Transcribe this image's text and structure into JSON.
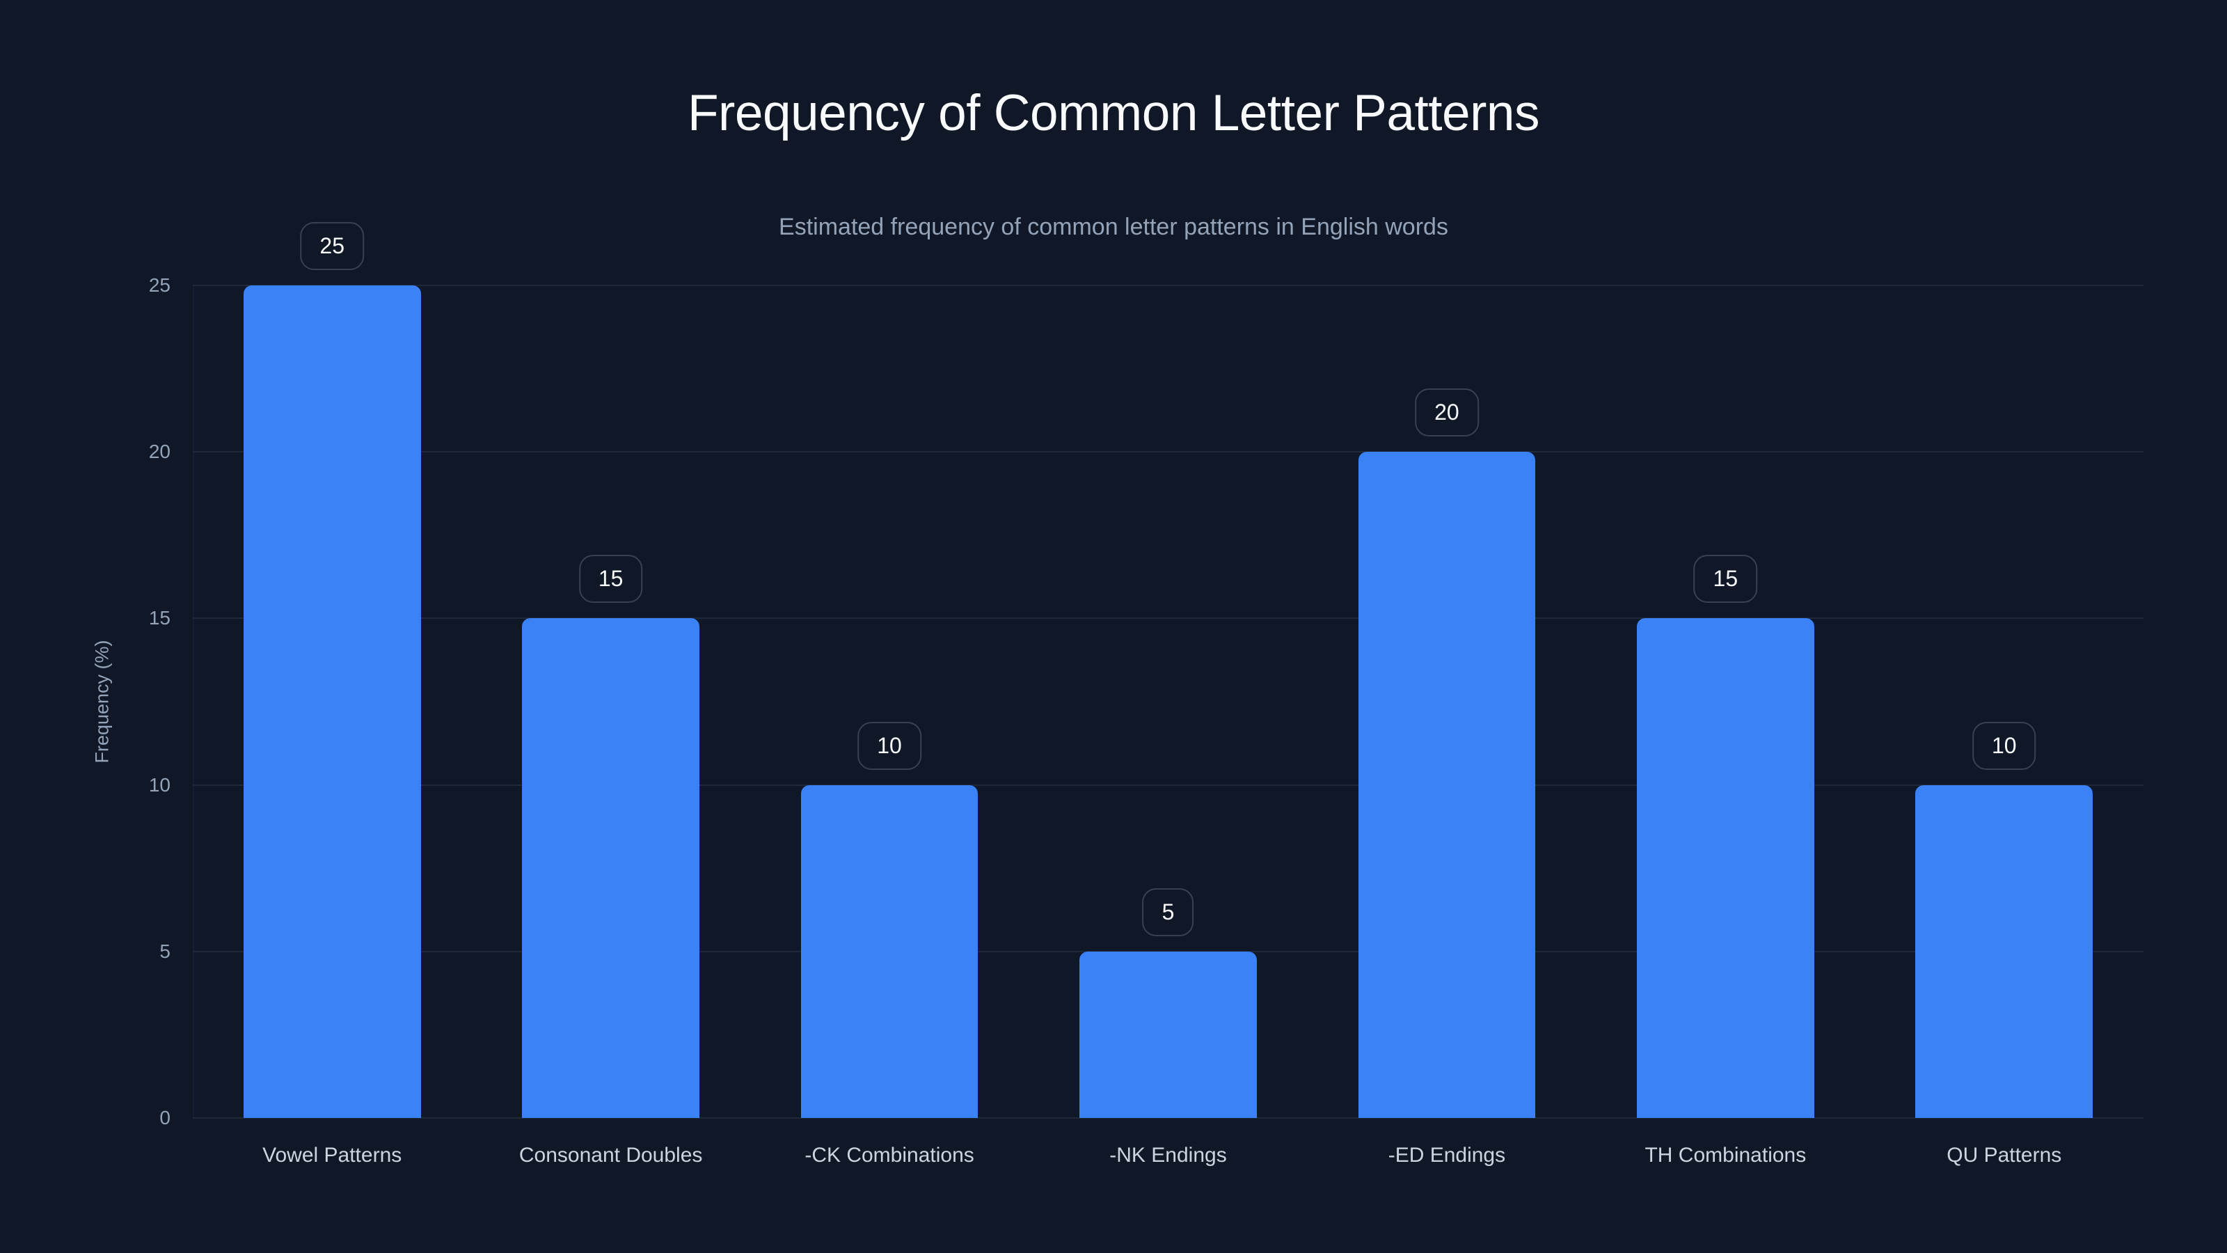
{
  "header": {
    "title": "Frequency of Common Letter Patterns",
    "subtitle": "Estimated frequency of common letter patterns in English words"
  },
  "axes": {
    "y_title": "Frequency (%)",
    "y_ticks": [
      "0",
      "5",
      "10",
      "15",
      "20",
      "25"
    ]
  },
  "colors": {
    "background": "#101828",
    "bar": "#3b82f6",
    "gridline": "#1e293b",
    "label_border": "#374151",
    "title": "#f8fafc",
    "subtitle": "#94a3b8",
    "tick": "#94a3b8",
    "x_label": "#cbd5e1"
  },
  "bars": [
    {
      "label": "Vowel Patterns",
      "value": 25,
      "value_text": "25"
    },
    {
      "label": "Consonant Doubles",
      "value": 15,
      "value_text": "15"
    },
    {
      "label": "-CK Combinations",
      "value": 10,
      "value_text": "10"
    },
    {
      "label": "-NK Endings",
      "value": 5,
      "value_text": "5"
    },
    {
      "label": "-ED Endings",
      "value": 20,
      "value_text": "20"
    },
    {
      "label": "TH Combinations",
      "value": 15,
      "value_text": "15"
    },
    {
      "label": "QU Patterns",
      "value": 10,
      "value_text": "10"
    }
  ],
  "chart_data": {
    "type": "bar",
    "title": "Frequency of Common Letter Patterns",
    "subtitle": "Estimated frequency of common letter patterns in English words",
    "categories": [
      "Vowel Patterns",
      "Consonant Doubles",
      "-CK Combinations",
      "-NK Endings",
      "-ED Endings",
      "TH Combinations",
      "QU Patterns"
    ],
    "values": [
      25,
      15,
      10,
      5,
      20,
      15,
      10
    ],
    "xlabel": "",
    "ylabel": "Frequency (%)",
    "ylim": [
      0,
      25
    ],
    "yticks": [
      0,
      5,
      10,
      15,
      20,
      25
    ],
    "grid": true,
    "legend": null,
    "data_labels": true
  }
}
